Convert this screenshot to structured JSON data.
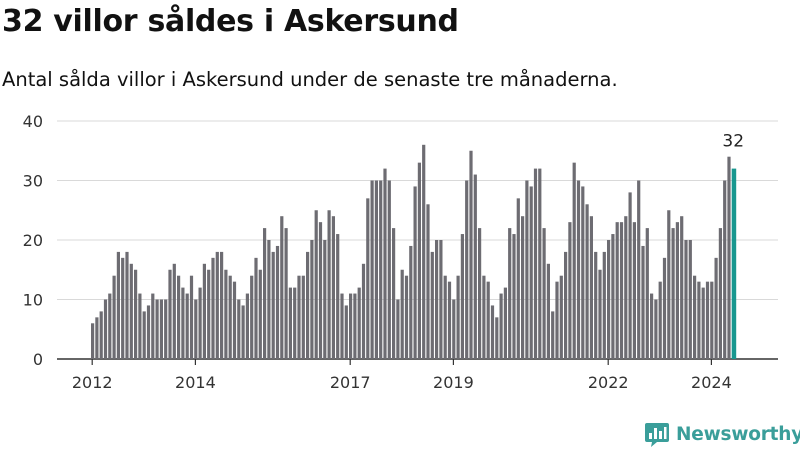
{
  "header": {
    "title": "32 villor såldes i Askersund",
    "subtitle": "Antal sålda villor i Askersund under de senaste tre månaderna."
  },
  "brand": {
    "name": "Newsworthy",
    "color": "#3a9e9a"
  },
  "chart_data": {
    "type": "bar",
    "grid": "horizontal",
    "ylim": [
      0,
      40
    ],
    "yticks": [
      0,
      10,
      20,
      30,
      40
    ],
    "xticks": [
      "2012",
      "2014",
      "2017",
      "2019",
      "2022",
      "2024"
    ],
    "xtick_bar_index": [
      0,
      24,
      60,
      84,
      120,
      144
    ],
    "bar_color": "#6d6c72",
    "highlight_color": "#18978f",
    "highlight_label": "32",
    "values": [
      6,
      7,
      8,
      10,
      11,
      14,
      18,
      17,
      18,
      16,
      15,
      11,
      8,
      9,
      11,
      10,
      10,
      10,
      15,
      16,
      14,
      12,
      11,
      14,
      10,
      12,
      16,
      15,
      17,
      18,
      18,
      15,
      14,
      13,
      10,
      9,
      11,
      14,
      17,
      15,
      22,
      20,
      18,
      19,
      24,
      22,
      12,
      12,
      14,
      14,
      18,
      20,
      25,
      23,
      20,
      25,
      24,
      21,
      11,
      9,
      11,
      11,
      12,
      16,
      27,
      30,
      30,
      30,
      32,
      30,
      22,
      10,
      15,
      14,
      19,
      29,
      33,
      36,
      26,
      18,
      20,
      20,
      14,
      13,
      10,
      14,
      21,
      30,
      35,
      31,
      22,
      14,
      13,
      9,
      7,
      11,
      12,
      22,
      21,
      27,
      24,
      30,
      29,
      32,
      32,
      22,
      16,
      8,
      13,
      14,
      18,
      23,
      33,
      30,
      29,
      26,
      24,
      18,
      15,
      18,
      20,
      21,
      23,
      23,
      24,
      28,
      23,
      30,
      19,
      22,
      11,
      10,
      13,
      17,
      25,
      22,
      23,
      24,
      20,
      20,
      14,
      13,
      12,
      13,
      13,
      17,
      22,
      30,
      34,
      32
    ]
  }
}
